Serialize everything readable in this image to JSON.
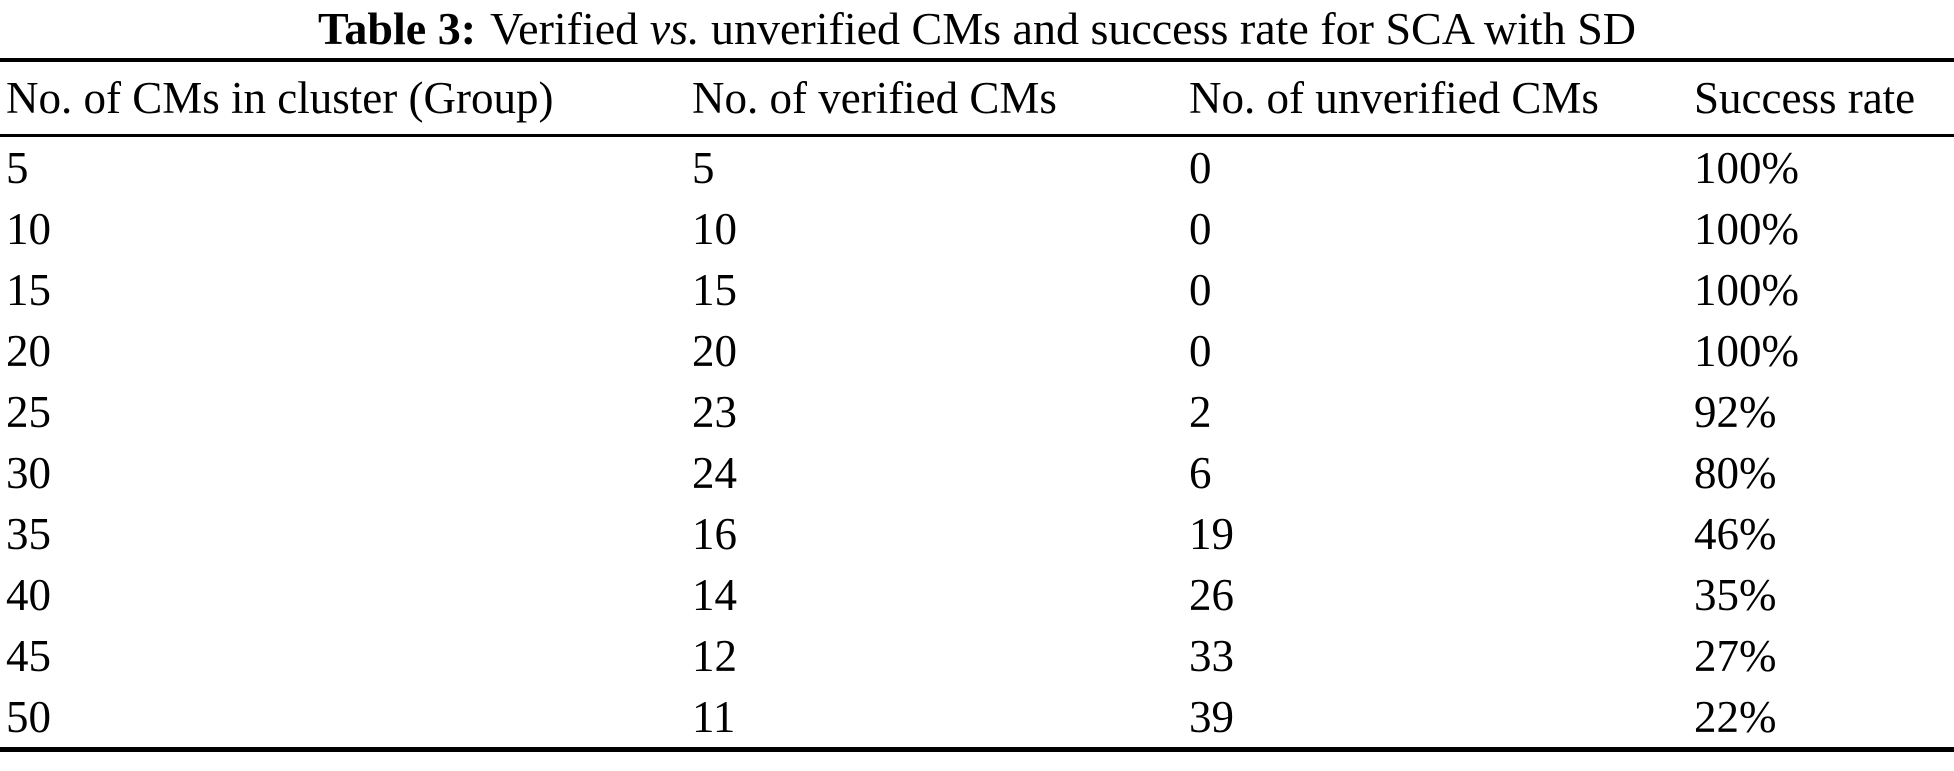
{
  "caption": {
    "label": "Table 3:",
    "part1": "Verified",
    "vs": "vs.",
    "part2": "unverified CMs and success rate for SCA with SD"
  },
  "chart_data": {
    "type": "table",
    "title": "Table 3: Verified vs. unverified CMs and success rate for SCA with SD",
    "columns": [
      "No. of CMs in cluster (Group)",
      "No. of verified CMs",
      "No. of unverified CMs",
      "Success rate"
    ],
    "rows": [
      [
        5,
        5,
        0,
        "100%"
      ],
      [
        10,
        10,
        0,
        "100%"
      ],
      [
        15,
        15,
        0,
        "100%"
      ],
      [
        20,
        20,
        0,
        "100%"
      ],
      [
        25,
        23,
        2,
        "92%"
      ],
      [
        30,
        24,
        6,
        "80%"
      ],
      [
        35,
        16,
        19,
        "46%"
      ],
      [
        40,
        14,
        26,
        "35%"
      ],
      [
        45,
        12,
        33,
        "27%"
      ],
      [
        50,
        11,
        39,
        "22%"
      ]
    ],
    "layout": {
      "column_alignment": "left",
      "rules": [
        "top",
        "below-header",
        "bottom"
      ],
      "text_color": "#000000",
      "background_color": "#ffffff"
    }
  }
}
